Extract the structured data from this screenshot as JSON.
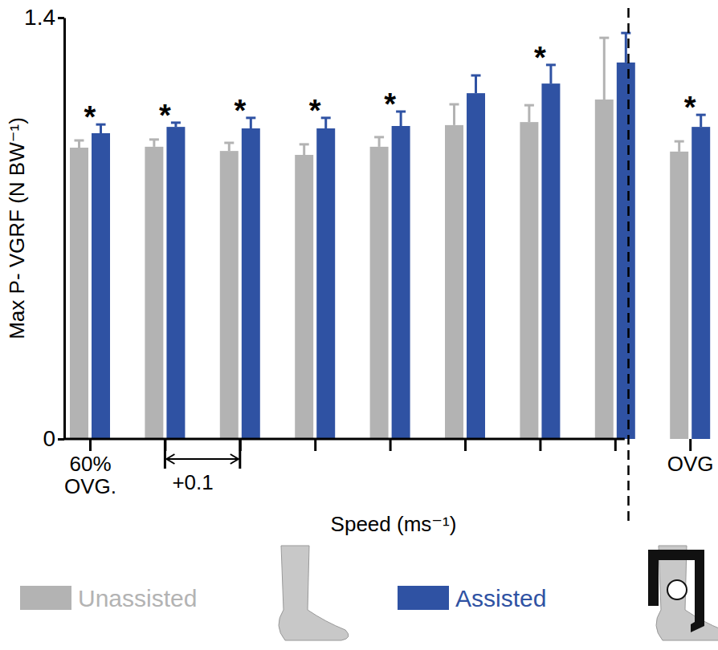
{
  "chart_data": {
    "type": "bar",
    "y_label": "Max P- VGRF (N BW⁻¹)",
    "x_label": "Speed (ms⁻¹)",
    "categories": [
      "60% OVG.",
      null,
      null,
      null,
      null,
      null,
      null,
      null,
      "OVG"
    ],
    "series": [
      {
        "name": "Unassisted",
        "color": "#b3b3b3",
        "values": [
          0.968,
          0.971,
          0.957,
          0.944,
          0.971,
          1.043,
          1.053,
          1.128,
          0.955
        ],
        "errors": [
          0.024,
          0.024,
          0.027,
          0.035,
          0.032,
          0.069,
          0.056,
          0.205,
          0.034
        ]
      },
      {
        "name": "Assisted",
        "color": "#2f52a3",
        "values": [
          1.016,
          1.037,
          1.032,
          1.032,
          1.04,
          1.149,
          1.181,
          1.251,
          1.037
        ],
        "errors": [
          0.029,
          0.014,
          0.035,
          0.035,
          0.048,
          0.059,
          0.062,
          0.098,
          0.04
        ]
      }
    ],
    "ylim": [
      0,
      1.4
    ],
    "yticks": [
      0,
      1.4
    ],
    "legend": "bottom",
    "annotations": [
      {
        "text": "*",
        "category": 0
      },
      {
        "text": "*",
        "category": 1
      },
      {
        "text": "*",
        "category": 2
      },
      {
        "text": "*",
        "category": 3
      },
      {
        "text": "*",
        "category": 4
      },
      {
        "text": "*",
        "category": 6
      },
      {
        "text": "*",
        "category": 8
      },
      {
        "text": "+0.1",
        "from": 1,
        "to": 2
      }
    ]
  }
}
